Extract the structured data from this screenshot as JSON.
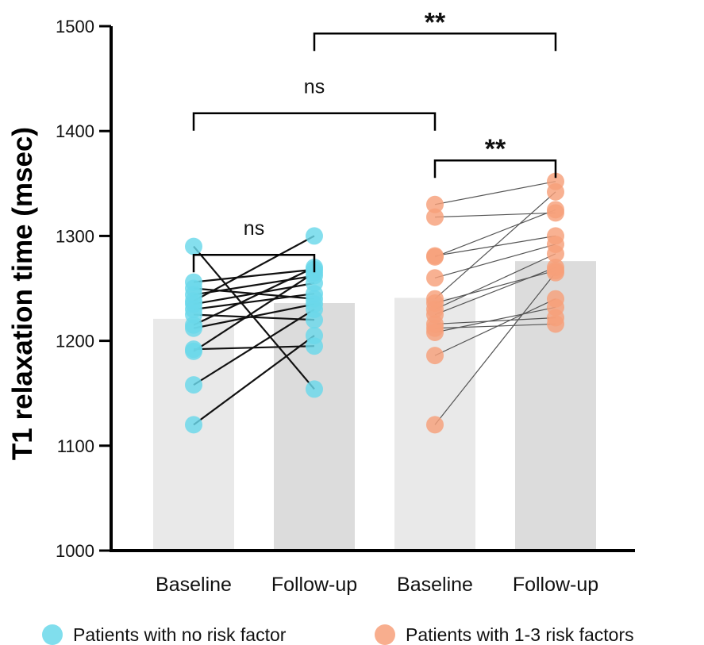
{
  "chart_data": {
    "type": "bar",
    "title": "",
    "xlabel": "",
    "ylabel": "T1 relaxation time (msec)",
    "ylim": [
      1000,
      1500
    ],
    "yticks": [
      1000,
      1100,
      1200,
      1300,
      1400,
      1500
    ],
    "grid": false,
    "categories": [
      "Baseline",
      "Follow-up",
      "Baseline",
      "Follow-up"
    ],
    "bar_values": [
      1221,
      1236,
      1241,
      1276
    ],
    "bar_colors": [
      "#e9e9e9",
      "#dcdcdc",
      "#e9e9e9",
      "#dcdcdc"
    ],
    "groups": [
      {
        "name": "Patients with no risk factor",
        "color": "#6ad8ea",
        "line_color": "#111111",
        "bars": [
          0,
          1
        ],
        "pairs": [
          [
            1290,
            1154
          ],
          [
            1256,
            1268
          ],
          [
            1250,
            1240
          ],
          [
            1244,
            1262
          ],
          [
            1238,
            1300
          ],
          [
            1235,
            1255
          ],
          [
            1230,
            1245
          ],
          [
            1225,
            1220
          ],
          [
            1215,
            1270
          ],
          [
            1212,
            1235
          ],
          [
            1192,
            1195
          ],
          [
            1190,
            1265
          ],
          [
            1158,
            1230
          ],
          [
            1120,
            1205
          ]
        ]
      },
      {
        "name": "Patients with 1-3 risk factors",
        "color": "#f7a07a",
        "line_color": "#555555",
        "bars": [
          2,
          3
        ],
        "pairs": [
          [
            1330,
            1352
          ],
          [
            1318,
            1322
          ],
          [
            1281,
            1300
          ],
          [
            1280,
            1325
          ],
          [
            1260,
            1292
          ],
          [
            1240,
            1342
          ],
          [
            1236,
            1267
          ],
          [
            1230,
            1283
          ],
          [
            1225,
            1270
          ],
          [
            1216,
            1222
          ],
          [
            1212,
            1216
          ],
          [
            1208,
            1232
          ],
          [
            1186,
            1240
          ],
          [
            1120,
            1265
          ]
        ]
      }
    ],
    "significance": [
      {
        "from": 0,
        "to": 1,
        "y": 1282,
        "label": "ns"
      },
      {
        "from": 0,
        "to": 2,
        "y": 1417,
        "label": "ns"
      },
      {
        "from": 2,
        "to": 3,
        "y": 1372,
        "label": "**"
      },
      {
        "from": 1,
        "to": 3,
        "y": 1493,
        "label": "**"
      }
    ],
    "legend": {
      "position": "bottom",
      "entries": [
        "Patients with no risk factor",
        "Patients with 1-3 risk factors"
      ]
    }
  }
}
